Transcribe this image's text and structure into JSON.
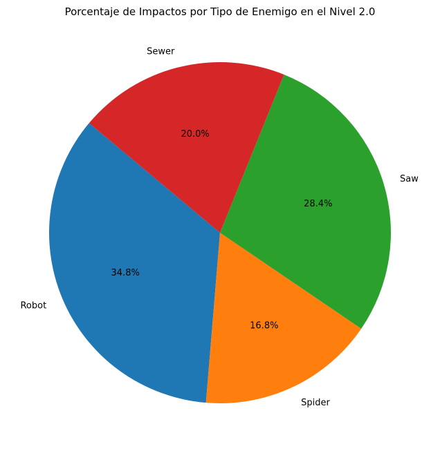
{
  "chart_data": {
    "type": "pie",
    "title": "Porcentaje de Impactos por Tipo de Enemigo en el Nivel 2.0",
    "start_angle_deg": 140,
    "direction": "counterclockwise",
    "slices": [
      {
        "label": "Robot",
        "value": 34.8,
        "pct_label": "34.8%",
        "color": "#1f77b4"
      },
      {
        "label": "Spider",
        "value": 16.8,
        "pct_label": "16.8%",
        "color": "#ff7f0e"
      },
      {
        "label": "Saw",
        "value": 28.4,
        "pct_label": "28.4%",
        "color": "#2ca02c"
      },
      {
        "label": "Sewer",
        "value": 20.0,
        "pct_label": "20.0%",
        "color": "#d62728"
      }
    ]
  }
}
